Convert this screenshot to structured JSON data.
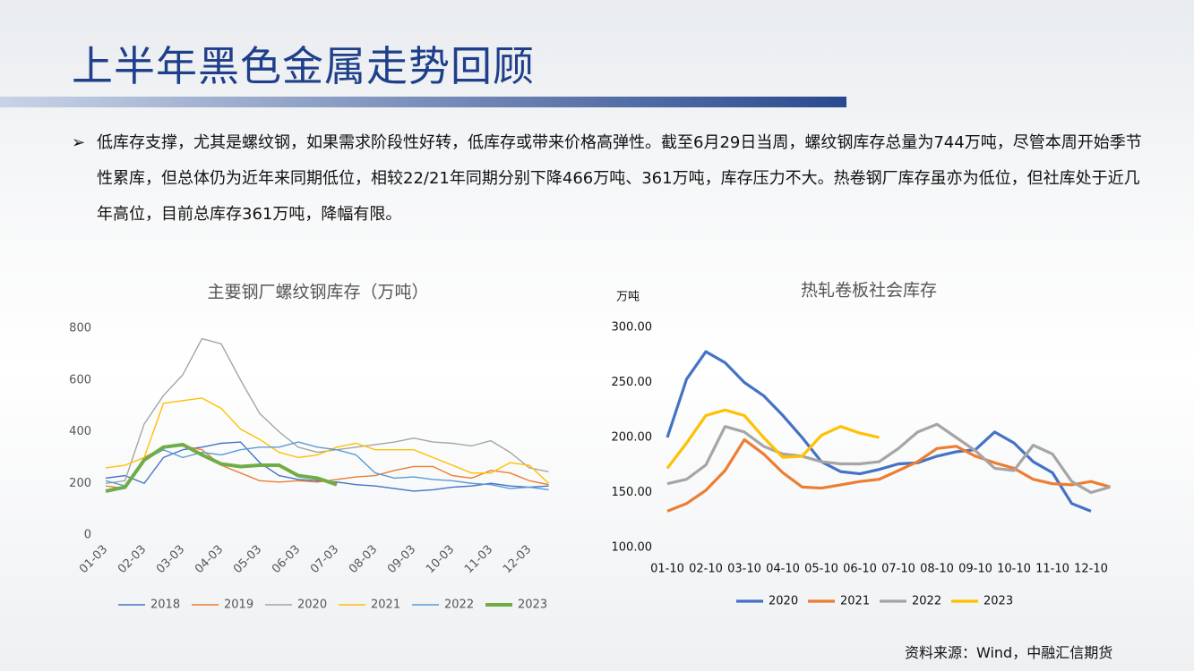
{
  "header": {
    "title": "上半年黑色金属走势回顾"
  },
  "bullet": "低库存支撑，尤其是螺纹钢，如果需求阶段性好转，低库存或带来价格高弹性。截至6月29日当周，螺纹钢库存总量为744万吨，尽管本周开始季节性累库，但总体仍为近年来同期低位，相较22/21年同期分别下降466万吨、361万吨，库存压力不大。热卷钢厂库存虽亦为低位，但社库处于近几年高位，目前总库存361万吨，降幅有限。",
  "source": "资料来源：Wind，中融汇信期货",
  "chart_data": [
    {
      "type": "line",
      "title": "主要钢厂螺纹钢库存（万吨）",
      "categories": [
        "01-03",
        null,
        "02-03",
        null,
        "03-03",
        null,
        "04-03",
        null,
        "05-03",
        null,
        "06-03",
        null,
        "07-03",
        null,
        "08-03",
        null,
        "09-03",
        null,
        "10-03",
        null,
        "11-03",
        null,
        "12-03",
        null
      ],
      "ylim": [
        0,
        800
      ],
      "yticks": [
        0,
        200,
        400,
        600,
        800
      ],
      "grid": false,
      "legend": "bottom",
      "series": [
        {
          "name": "2018",
          "color": "#4472c4",
          "values": [
            220,
            230,
            200,
            300,
            330,
            340,
            355,
            360,
            280,
            230,
            215,
            210,
            205,
            195,
            190,
            180,
            170,
            175,
            185,
            190,
            200,
            190,
            185,
            190
          ]
        },
        {
          "name": "2019",
          "color": "#ed7d31",
          "values": [
            190,
            180,
            300,
            340,
            345,
            330,
            270,
            240,
            210,
            205,
            210,
            205,
            215,
            225,
            230,
            250,
            265,
            265,
            230,
            220,
            250,
            240,
            210,
            195
          ]
        },
        {
          "name": "2020",
          "color": "#a5a5a5",
          "values": [
            200,
            210,
            430,
            540,
            620,
            760,
            740,
            600,
            470,
            400,
            340,
            320,
            330,
            340,
            350,
            360,
            375,
            360,
            355,
            345,
            365,
            320,
            260,
            245
          ]
        },
        {
          "name": "2021",
          "color": "#ffc000",
          "values": [
            260,
            270,
            300,
            510,
            520,
            530,
            490,
            410,
            370,
            320,
            300,
            310,
            340,
            355,
            330,
            330,
            330,
            300,
            270,
            240,
            240,
            280,
            270,
            200
          ]
        },
        {
          "name": "2022",
          "color": "#5b9bd5",
          "values": [
            210,
            190,
            290,
            330,
            300,
            320,
            310,
            330,
            340,
            340,
            360,
            340,
            330,
            310,
            240,
            220,
            225,
            215,
            210,
            200,
            195,
            180,
            185,
            175
          ]
        },
        {
          "name": "2023",
          "color": "#70ad47",
          "values": [
            170,
            185,
            290,
            340,
            350,
            310,
            275,
            265,
            270,
            270,
            230,
            220,
            195,
            null,
            null,
            null,
            null,
            null,
            null,
            null,
            null,
            null,
            null,
            null
          ]
        }
      ]
    },
    {
      "type": "line",
      "title": "热轧卷板社会库存",
      "ylabel": "万吨",
      "categories": [
        "01-10",
        null,
        "02-10",
        null,
        "03-10",
        null,
        "04-10",
        null,
        "05-10",
        null,
        "06-10",
        null,
        "07-10",
        null,
        "08-10",
        null,
        "09-10",
        null,
        "10-10",
        null,
        "11-10",
        null,
        "12-10",
        null
      ],
      "ylim": [
        100,
        300
      ],
      "yticks": [
        {
          "value": 100,
          "label": "100.00"
        },
        {
          "value": 150,
          "label": "150.00"
        },
        {
          "value": 200,
          "label": "200.00"
        },
        {
          "value": 250,
          "label": "250.00"
        },
        {
          "value": 300,
          "label": "300.00"
        }
      ],
      "grid": false,
      "legend": "bottom",
      "series": [
        {
          "name": "2020",
          "color": "#4472c4",
          "values": [
            200,
            253,
            278,
            268,
            250,
            238,
            220,
            200,
            178,
            169,
            167,
            171,
            176,
            177,
            183,
            187,
            189,
            205,
            195,
            178,
            168,
            140,
            133,
            null
          ]
        },
        {
          "name": "2021",
          "color": "#ed7d31",
          "values": [
            133,
            140,
            152,
            170,
            198,
            185,
            168,
            155,
            154,
            157,
            160,
            162,
            170,
            178,
            190,
            192,
            183,
            177,
            172,
            162,
            158,
            157,
            160,
            155
          ]
        },
        {
          "name": "2022",
          "color": "#a5a5a5",
          "values": [
            158,
            162,
            175,
            210,
            205,
            192,
            185,
            183,
            178,
            176,
            176,
            178,
            190,
            205,
            212,
            200,
            188,
            172,
            170,
            193,
            185,
            160,
            150,
            155
          ]
        },
        {
          "name": "2023",
          "color": "#ffc000",
          "values": [
            172,
            195,
            220,
            225,
            220,
            200,
            182,
            183,
            202,
            210,
            204,
            200,
            null,
            null,
            null,
            null,
            null,
            null,
            null,
            null,
            null,
            null,
            null,
            null
          ]
        }
      ]
    }
  ]
}
